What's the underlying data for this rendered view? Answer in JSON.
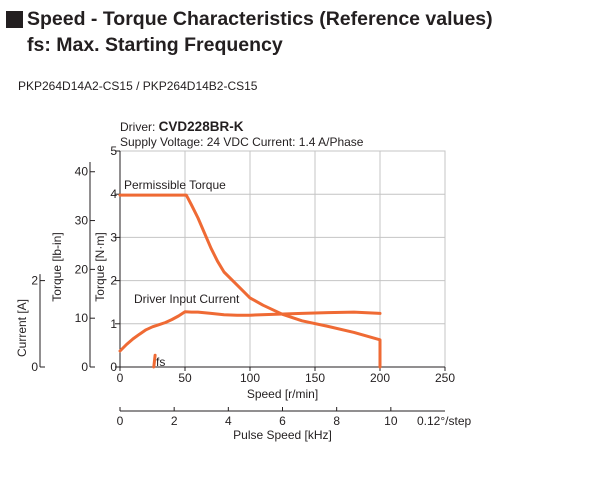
{
  "heading": {
    "title": "Speed - Torque Characteristics (Reference values)",
    "subtitle": "fs: Max. Starting Frequency"
  },
  "model_label": "PKP264D14A2-CS15 / PKP264D14B2-CS15",
  "colors": {
    "curve": "#ef6a34",
    "grid": "#c4c4c4",
    "axis": "#231f20"
  },
  "chart_data": {
    "type": "line",
    "driver_label": "Driver:",
    "driver_name": "CVD228BR-K",
    "supply_text": "Supply Voltage: 24 VDC  Current: 1.4 A/Phase",
    "xlabel": "Speed [r/min]",
    "xlim": [
      0,
      250
    ],
    "xticks": [
      "0",
      "50",
      "100",
      "150",
      "200",
      "250"
    ],
    "x2label": "Pulse Speed [kHz]",
    "x2lim": [
      0,
      12
    ],
    "x2ticks": [
      "0",
      "2",
      "4",
      "6",
      "8",
      "10"
    ],
    "x2unit": "0.12°/step",
    "y_torque_nm": {
      "label": "Torque [N·m]",
      "lim": [
        0,
        5
      ],
      "ticks": [
        "0",
        "1",
        "2",
        "3",
        "4",
        "5"
      ]
    },
    "y_torque_lbin": {
      "label": "Torque [lb-in]",
      "lim": [
        0,
        44.25
      ],
      "ticks": [
        "0",
        "10",
        "20",
        "30",
        "40"
      ]
    },
    "y_current": {
      "label": "Current [A]",
      "lim": [
        0,
        5
      ],
      "ticks": [
        "0",
        "2"
      ]
    },
    "grid": true,
    "series": [
      {
        "name": "Permissible Torque",
        "x": [
          0,
          51,
          55,
          60,
          65,
          70,
          75,
          80,
          90,
          100,
          110,
          125,
          140,
          160,
          180,
          200,
          200
        ],
        "y": [
          3.98,
          3.98,
          3.75,
          3.45,
          3.1,
          2.75,
          2.45,
          2.2,
          1.9,
          1.6,
          1.43,
          1.22,
          1.07,
          0.94,
          0.8,
          0.63,
          0
        ]
      },
      {
        "name": "Driver Input Current",
        "x": [
          0,
          5,
          10,
          15,
          20,
          25,
          30,
          35,
          40,
          45,
          50,
          55,
          60,
          70,
          80,
          90,
          100,
          120,
          140,
          160,
          180,
          200
        ],
        "y": [
          0.37,
          0.52,
          0.65,
          0.76,
          0.86,
          0.93,
          0.98,
          1.03,
          1.1,
          1.18,
          1.28,
          1.27,
          1.27,
          1.24,
          1.21,
          1.2,
          1.2,
          1.22,
          1.24,
          1.26,
          1.27,
          1.24
        ]
      }
    ],
    "fs": {
      "label": "fs",
      "x": [
        26,
        27
      ],
      "y": [
        0.0,
        0.27
      ]
    }
  }
}
